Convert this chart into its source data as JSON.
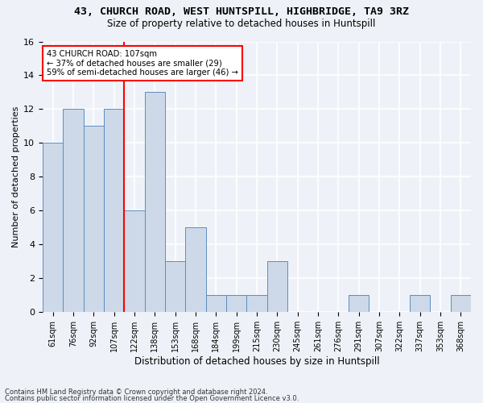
{
  "title_line1": "43, CHURCH ROAD, WEST HUNTSPILL, HIGHBRIDGE, TA9 3RZ",
  "title_line2": "Size of property relative to detached houses in Huntspill",
  "xlabel": "Distribution of detached houses by size in Huntspill",
  "ylabel": "Number of detached properties",
  "categories": [
    "61sqm",
    "76sqm",
    "92sqm",
    "107sqm",
    "122sqm",
    "138sqm",
    "153sqm",
    "168sqm",
    "184sqm",
    "199sqm",
    "215sqm",
    "230sqm",
    "245sqm",
    "261sqm",
    "276sqm",
    "291sqm",
    "307sqm",
    "322sqm",
    "337sqm",
    "353sqm",
    "368sqm"
  ],
  "values": [
    10,
    12,
    11,
    12,
    6,
    13,
    3,
    5,
    1,
    1,
    1,
    3,
    0,
    0,
    0,
    1,
    0,
    0,
    1,
    0,
    1
  ],
  "bar_color": "#cdd9e8",
  "bar_edge_color": "#5b8dc0",
  "red_line_index": 3,
  "annotation_text": "43 CHURCH ROAD: 107sqm\n← 37% of detached houses are smaller (29)\n59% of semi-detached houses are larger (46) →",
  "annotation_box_color": "white",
  "annotation_box_edge_color": "red",
  "red_line_color": "red",
  "footnote_line1": "Contains HM Land Registry data © Crown copyright and database right 2024.",
  "footnote_line2": "Contains public sector information licensed under the Open Government Licence v3.0.",
  "background_color": "#eef2f8",
  "grid_color": "white",
  "ylim": [
    0,
    16
  ],
  "yticks": [
    0,
    2,
    4,
    6,
    8,
    10,
    12,
    14,
    16
  ]
}
